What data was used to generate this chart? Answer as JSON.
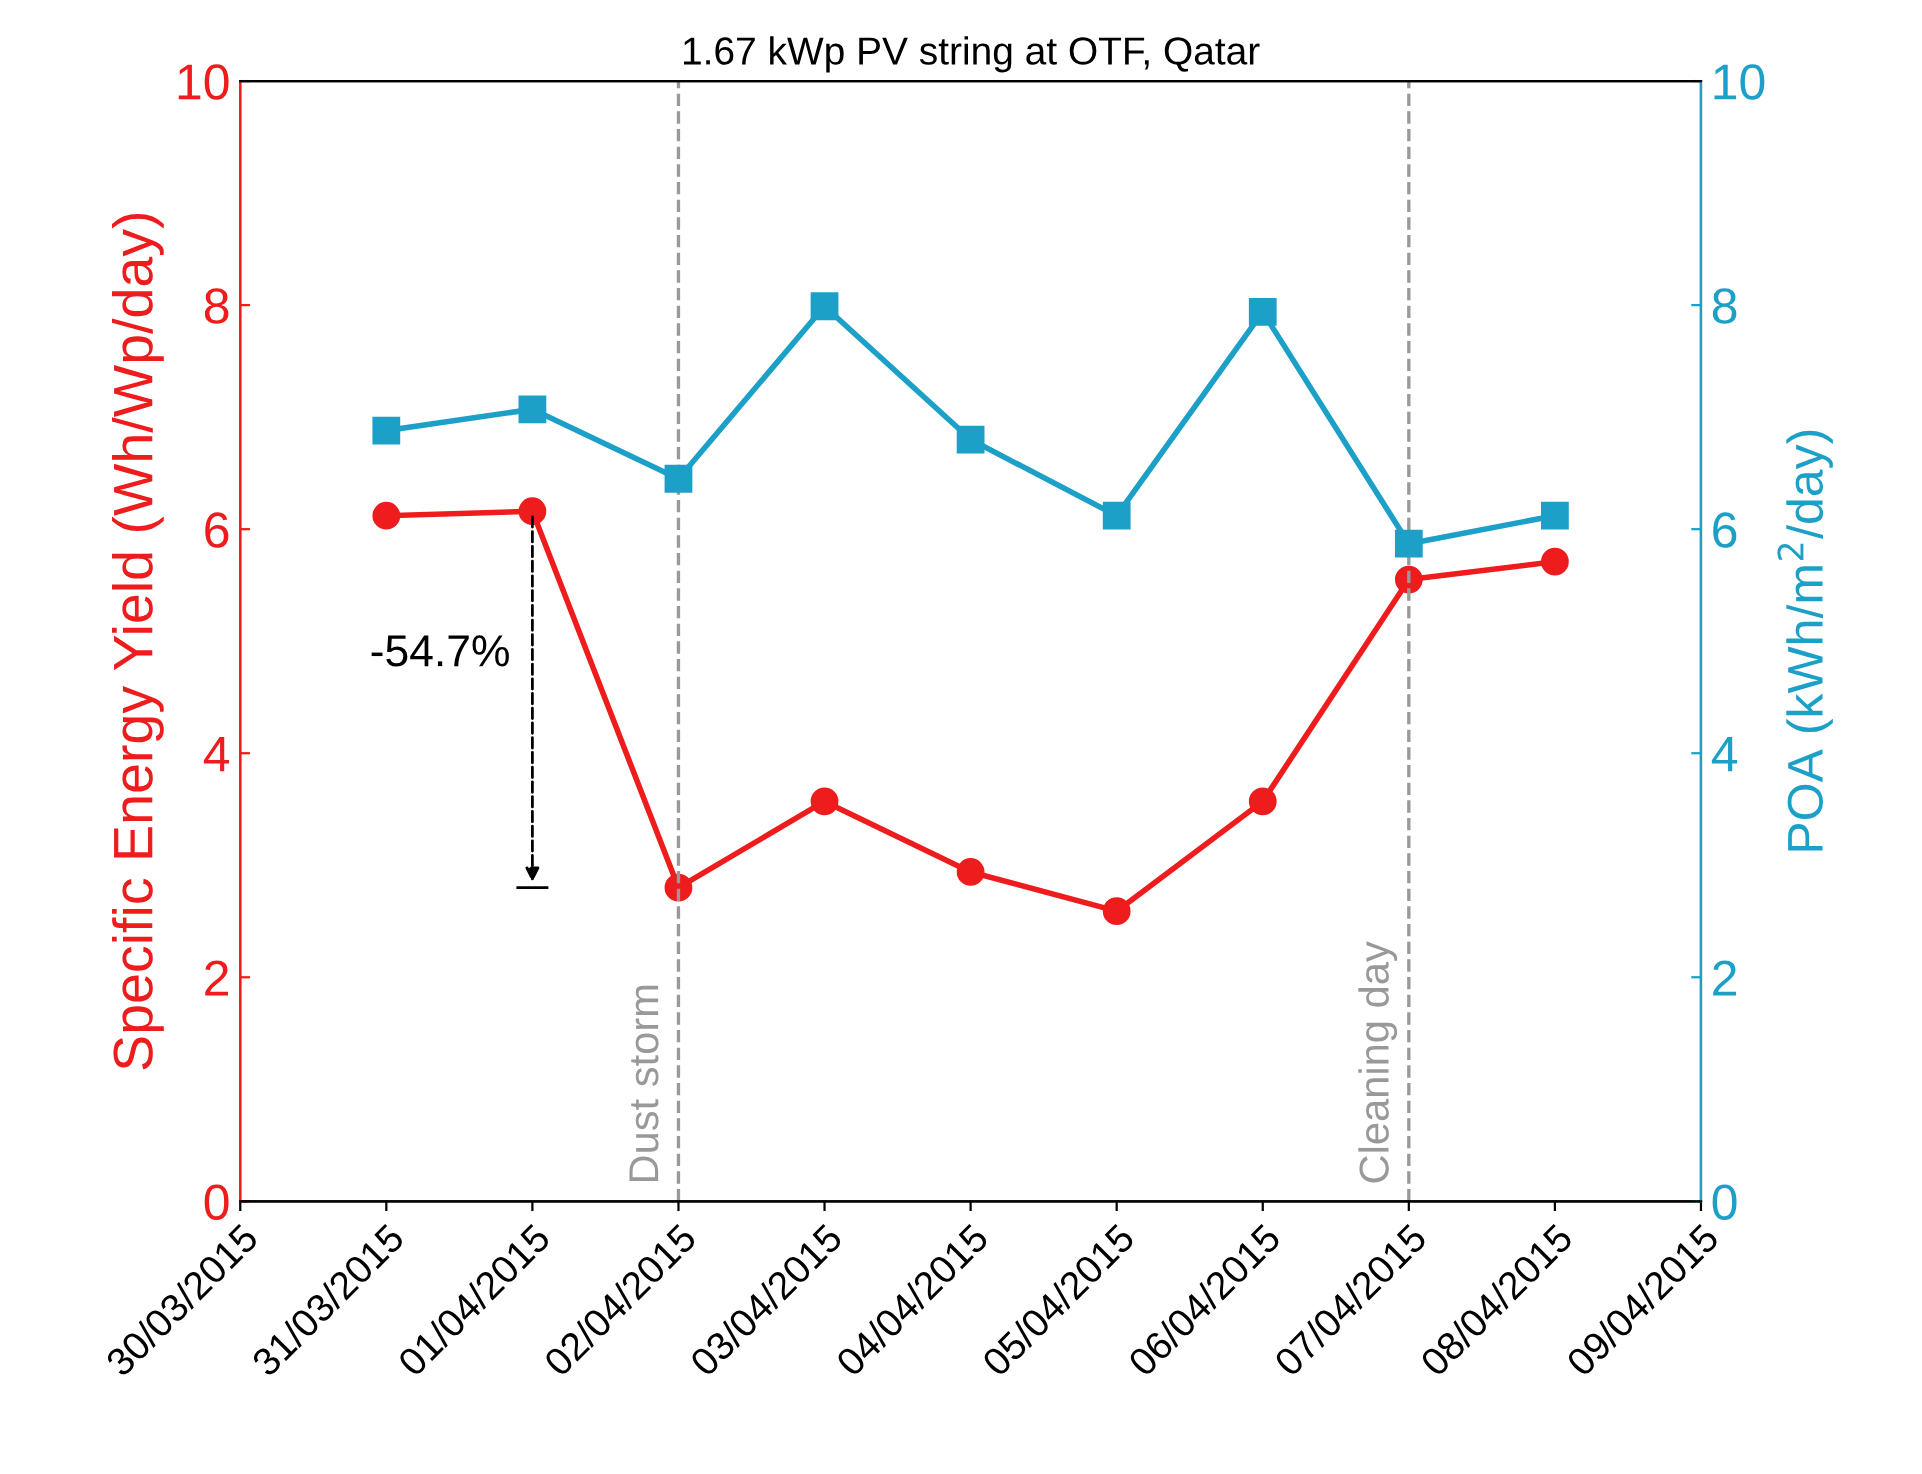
{
  "chart_data": {
    "type": "line",
    "title": "1.67 kWp PV string at OTF, Qatar",
    "x": [
      "2015-03-31",
      "2015-04-01",
      "2015-04-02",
      "2015-04-03",
      "2015-04-04",
      "2015-04-05",
      "2015-04-06",
      "2015-04-07",
      "2015-04-08"
    ],
    "series": [
      {
        "color": "#ee1c1c",
        "marker": "circle",
        "axis": "y",
        "values": [
          6.12,
          6.16,
          2.8,
          3.57,
          2.94,
          2.59,
          3.57,
          5.55,
          5.71
        ]
      },
      {
        "color": "#1ca0c8",
        "marker": "square",
        "axis": "y2",
        "values": [
          6.88,
          7.07,
          6.45,
          7.99,
          6.8,
          6.12,
          7.94,
          5.87,
          6.12
        ]
      }
    ],
    "ylabel": "Specific Energy Yield (Wh/Wp/day)",
    "y2label": "POA (kWh/m$^{2}$/day)",
    "xlim": [
      "2015-03-30",
      "2015-04-09"
    ],
    "xticks": [
      {
        "value": "2015-03-30",
        "label": "30/03/2015"
      },
      {
        "value": "2015-03-31",
        "label": "31/03/2015"
      },
      {
        "value": "2015-04-01",
        "label": "01/04/2015"
      },
      {
        "value": "2015-04-02",
        "label": "02/04/2015"
      },
      {
        "value": "2015-04-03",
        "label": "03/04/2015"
      },
      {
        "value": "2015-04-04",
        "label": "04/04/2015"
      },
      {
        "value": "2015-04-05",
        "label": "05/04/2015"
      },
      {
        "value": "2015-04-06",
        "label": "06/04/2015"
      },
      {
        "value": "2015-04-07",
        "label": "07/04/2015"
      },
      {
        "value": "2015-04-08",
        "label": "08/04/2015"
      },
      {
        "value": "2015-04-09",
        "label": "09/04/2015"
      }
    ],
    "ylim": [
      0,
      10
    ],
    "yticks": [
      0,
      2,
      4,
      6,
      8,
      10
    ],
    "y2lim": [
      0,
      10
    ],
    "y2ticks": [
      0,
      2,
      4,
      6,
      8,
      10
    ],
    "ref_lines": [
      {
        "axis": "x",
        "value": "2015-04-02",
        "label": "Dust storm",
        "color": "#999999",
        "line_style": "dashed"
      },
      {
        "axis": "x",
        "value": "2015-04-07",
        "label": "Cleaning day",
        "color": "#999999",
        "line_style": "dashed"
      }
    ],
    "annotations": [
      "-54.7%"
    ],
    "grid": false,
    "legend": false,
    "line_style": "solid"
  }
}
